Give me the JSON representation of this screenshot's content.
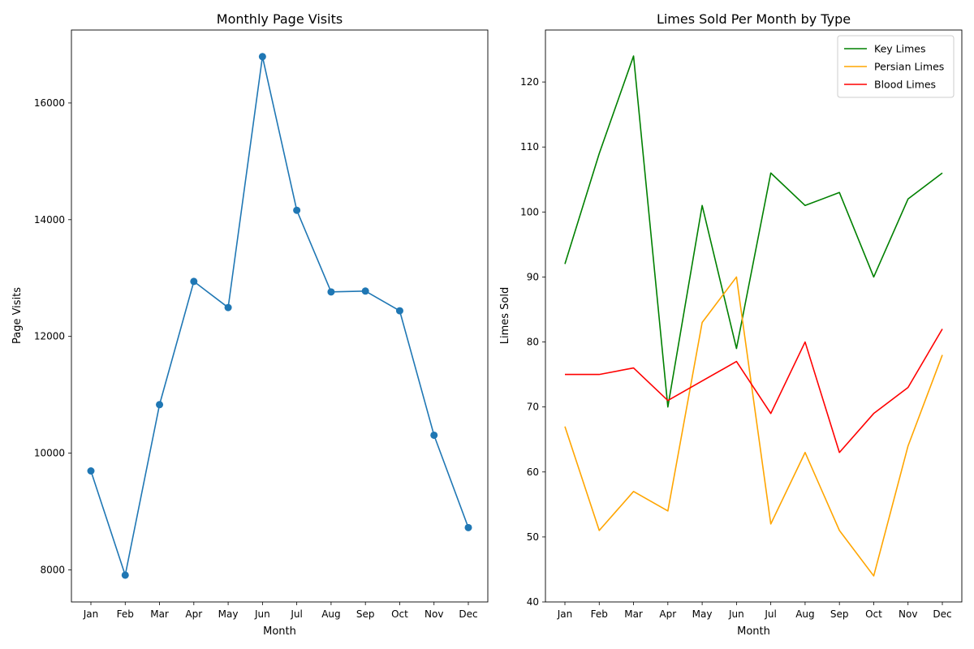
{
  "chart_data": [
    {
      "type": "line",
      "title": "Monthly Page Visits",
      "xlabel": "Month",
      "ylabel": "Page Visits",
      "categories": [
        "Jan",
        "Feb",
        "Mar",
        "Apr",
        "May",
        "Jun",
        "Jul",
        "Aug",
        "Sep",
        "Oct",
        "Nov",
        "Dec"
      ],
      "ylim": [
        7450,
        17250
      ],
      "yticks": [
        8000,
        10000,
        12000,
        14000,
        16000
      ],
      "series": [
        {
          "color": "#1f77b4",
          "marker": "circle",
          "values": [
            9695,
            7909,
            10831,
            12942,
            12495,
            16794,
            14161,
            12762,
            12777,
            12439,
            10307,
            8724
          ]
        }
      ],
      "legend": false,
      "grid": false
    },
    {
      "type": "line",
      "title": "Limes Sold Per Month by Type",
      "xlabel": "Month",
      "ylabel": "Limes Sold",
      "categories": [
        "Jan",
        "Feb",
        "Mar",
        "Apr",
        "May",
        "Jun",
        "Jul",
        "Aug",
        "Sep",
        "Oct",
        "Nov",
        "Dec"
      ],
      "ylim": [
        40,
        128
      ],
      "yticks": [
        40,
        50,
        60,
        70,
        80,
        90,
        100,
        110,
        120
      ],
      "series": [
        {
          "name": "Key Limes",
          "color": "#008000",
          "values": [
            92,
            109,
            124,
            70,
            101,
            79,
            106,
            101,
            103,
            90,
            102,
            106
          ]
        },
        {
          "name": "Persian Limes",
          "color": "#ffa500",
          "values": [
            67,
            51,
            57,
            54,
            83,
            90,
            52,
            63,
            51,
            44,
            64,
            78
          ]
        },
        {
          "name": "Blood Limes",
          "color": "#ff0000",
          "values": [
            75,
            75,
            76,
            71,
            74,
            77,
            69,
            80,
            63,
            69,
            73,
            82
          ]
        }
      ],
      "legend": "top-right",
      "grid": false
    }
  ]
}
